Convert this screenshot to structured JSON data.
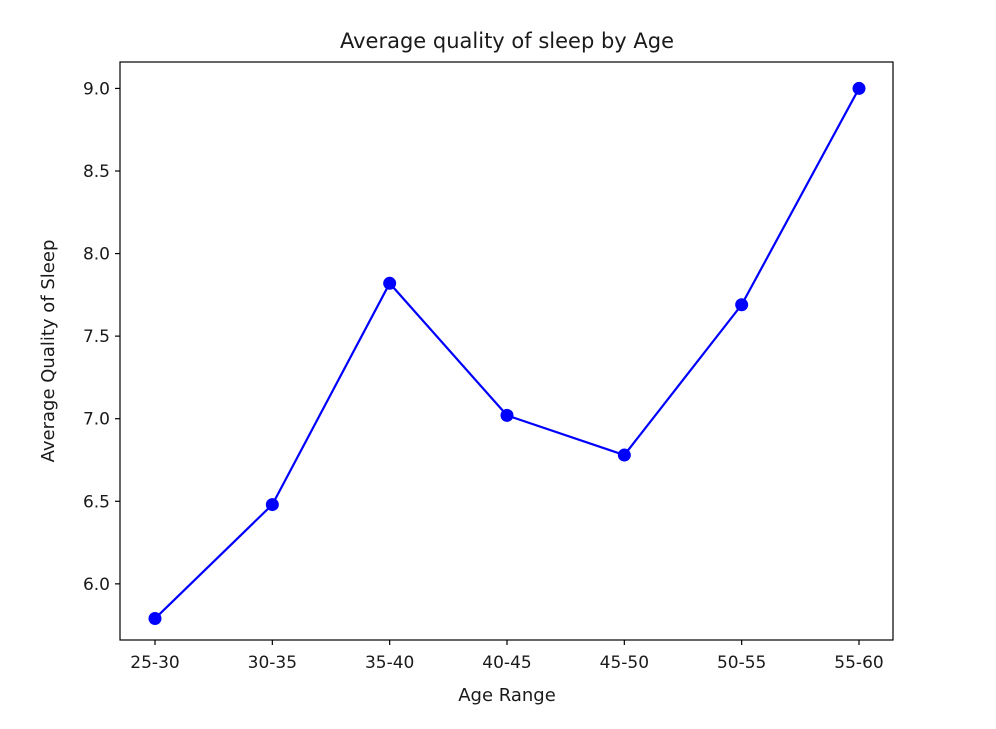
{
  "chart_data": {
    "type": "line",
    "title": "Average quality of sleep by Age",
    "xlabel": "Age Range",
    "ylabel": "Average Quality of Sleep",
    "categories": [
      "25-30",
      "30-35",
      "35-40",
      "40-45",
      "45-50",
      "50-55",
      "55-60"
    ],
    "series": [
      {
        "values": [
          5.79,
          6.48,
          7.82,
          7.02,
          6.78,
          7.69,
          9.0
        ],
        "color": "#0000ff",
        "marker": "circle"
      }
    ],
    "ylim": [
      5.66,
      9.16
    ],
    "yticks": [
      6.0,
      6.5,
      7.0,
      7.5,
      8.0,
      8.5,
      9.0
    ],
    "ytick_labels": [
      "6.0",
      "6.5",
      "7.0",
      "7.5",
      "8.0",
      "8.5",
      "9.0"
    ],
    "grid": false,
    "legend": false
  }
}
